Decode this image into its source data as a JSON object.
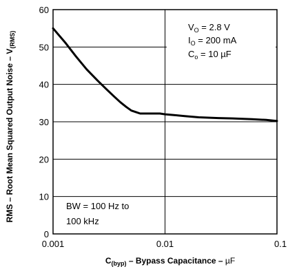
{
  "chart_data": {
    "type": "line",
    "title": "",
    "xlabel": {
      "main": "C",
      "sub": "(byp)",
      "rest": " – Bypass Capacitance – ",
      "unit": "µF"
    },
    "ylabel": {
      "main": "RMS – Root Mean Squared Output Noise – V",
      "sub": "(RMS)"
    },
    "x_scale": "log",
    "xlim": [
      0.001,
      0.1
    ],
    "ylim": [
      0,
      60
    ],
    "x_ticks": [
      0.001,
      0.01,
      0.1
    ],
    "x_tick_labels": [
      "0.001",
      "0.01",
      "0.1"
    ],
    "y_ticks": [
      0,
      10,
      20,
      30,
      40,
      50,
      60
    ],
    "y_tick_labels": [
      "0",
      "10",
      "20",
      "30",
      "40",
      "50",
      "60"
    ],
    "grid": true,
    "line_color": "#000000",
    "series": [
      {
        "x": [
          0.001,
          0.0013,
          0.0016,
          0.002,
          0.0025,
          0.003,
          0.0035,
          0.004,
          0.0045,
          0.005,
          0.0055,
          0.006,
          0.007,
          0.008,
          0.009,
          0.01,
          0.012,
          0.015,
          0.02,
          0.03,
          0.04,
          0.05,
          0.06,
          0.08,
          0.1
        ],
        "y": [
          55.0,
          51.0,
          47.5,
          44.0,
          41.0,
          38.7,
          36.8,
          35.2,
          34.0,
          33.0,
          32.6,
          32.2,
          32.2,
          32.2,
          32.2,
          32.0,
          31.8,
          31.5,
          31.2,
          31.0,
          30.9,
          30.8,
          30.7,
          30.5,
          30.2
        ]
      }
    ],
    "annotations": {
      "conditions": [
        {
          "main": "V",
          "sub": "O",
          "rest": " = 2.8 V"
        },
        {
          "main": "I",
          "sub": "O",
          "rest": " = 200 mA"
        },
        {
          "main": "C",
          "sub": "o",
          "rest": " = 10 µF"
        }
      ],
      "bandwidth": [
        "BW = 100 Hz to",
        "100 kHz"
      ]
    }
  }
}
